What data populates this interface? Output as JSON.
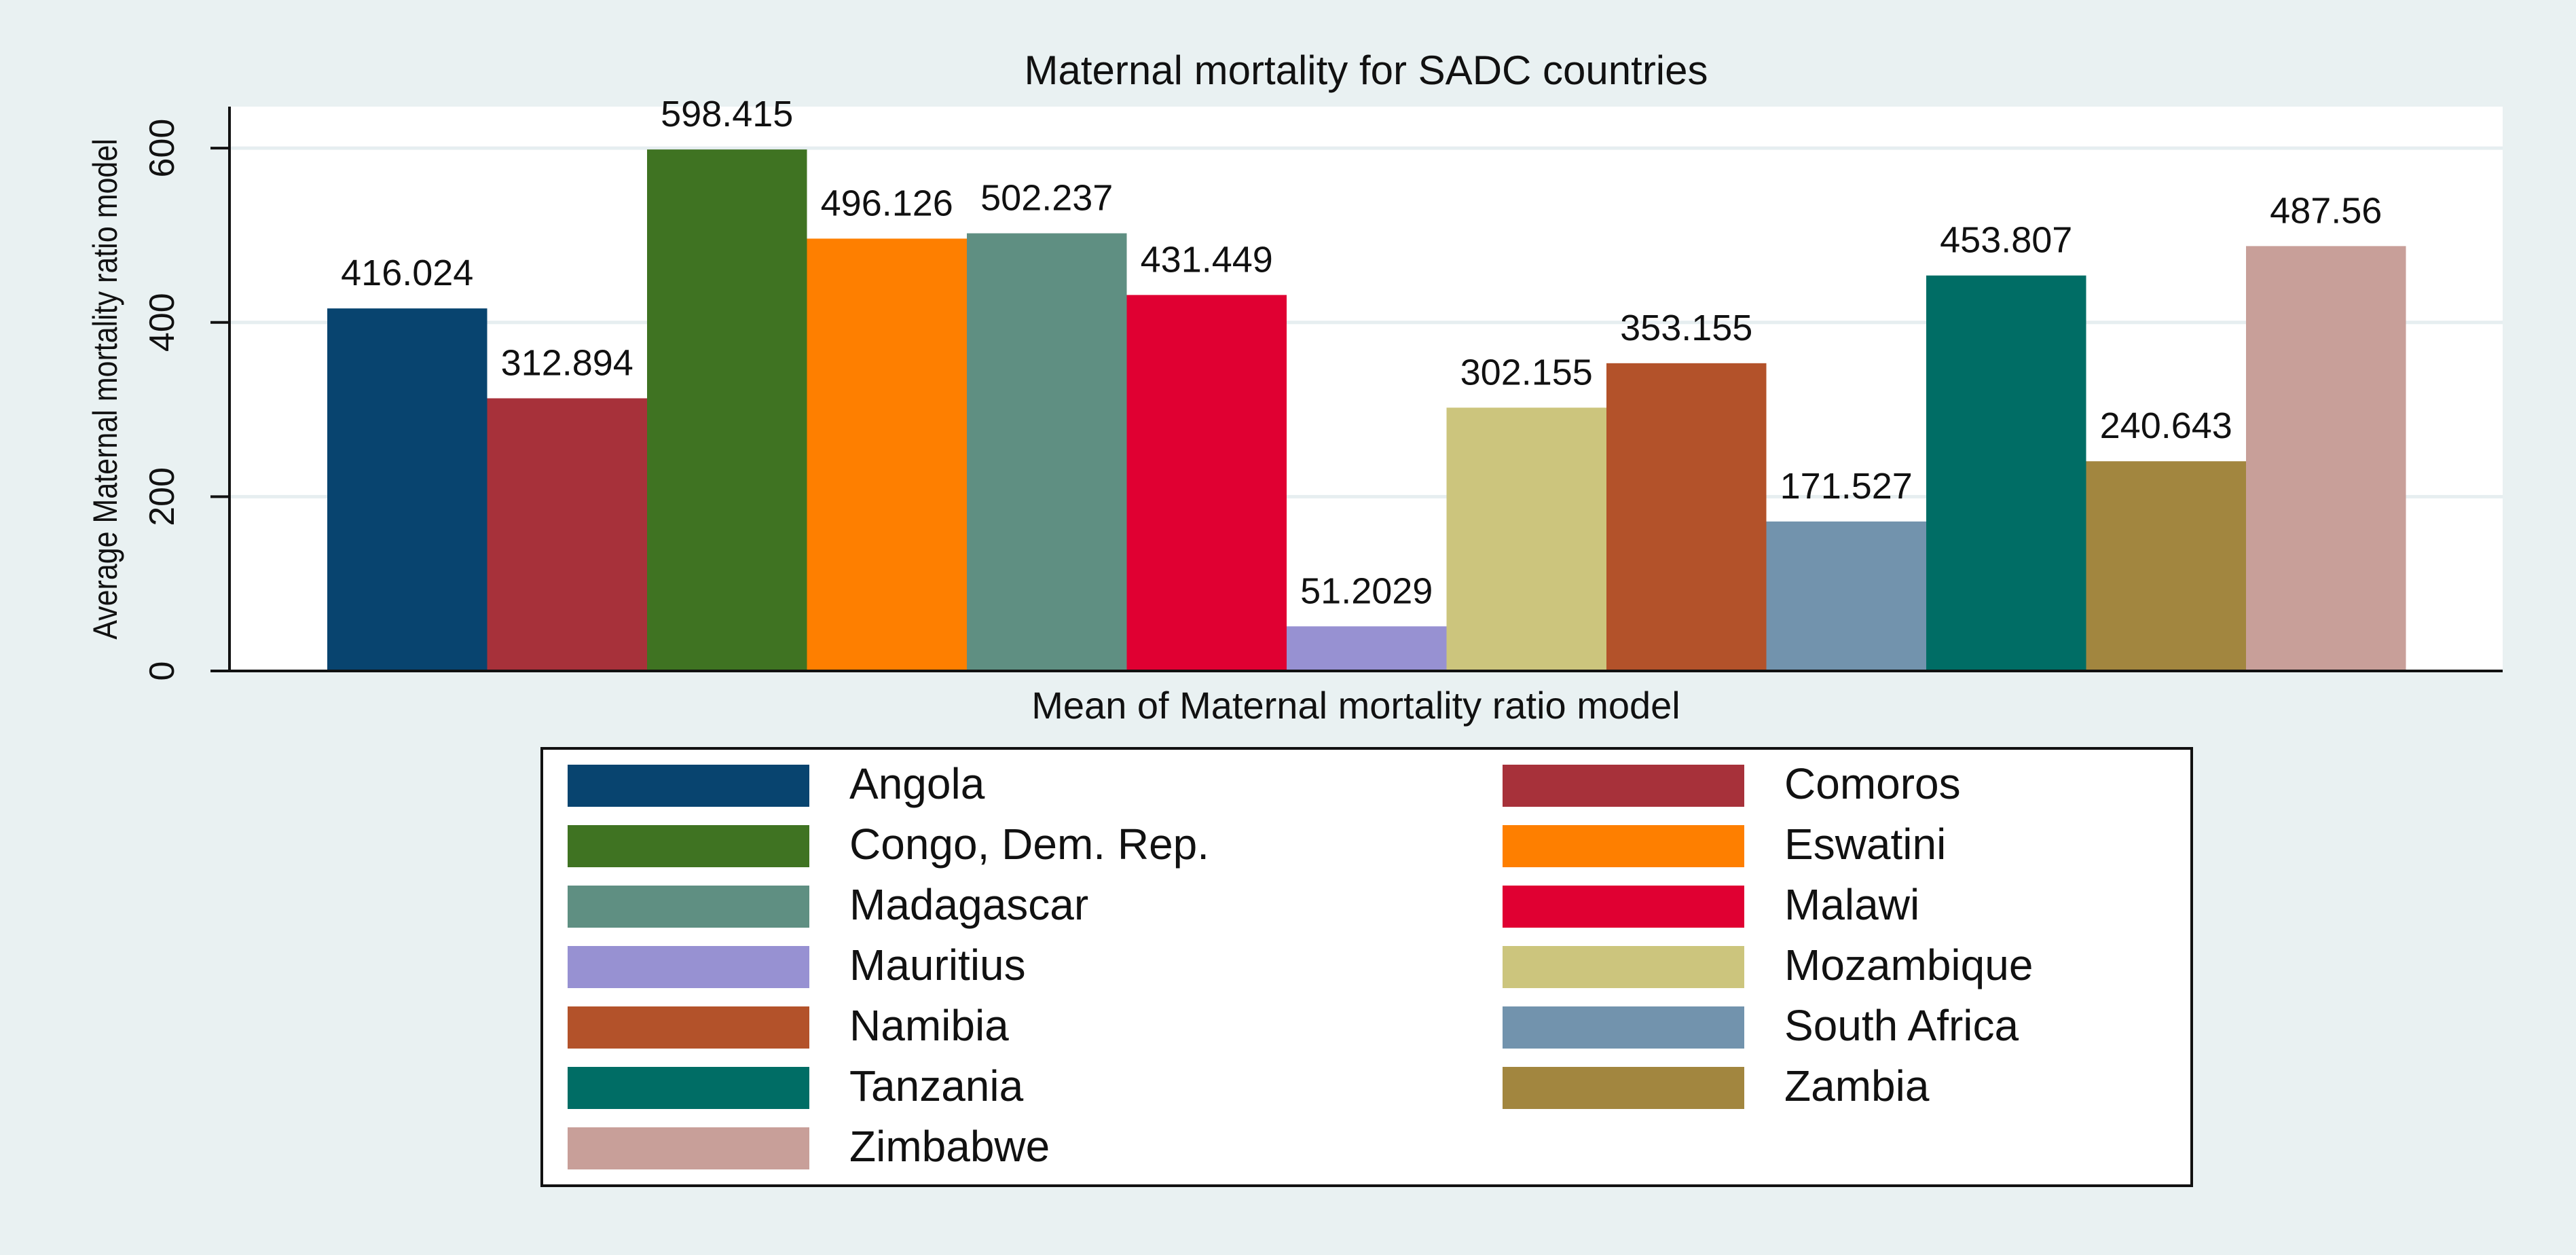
{
  "chart_data": {
    "type": "bar",
    "title": "Maternal mortality for SADC countries",
    "ylabel": "Average Maternal mortality ratio model",
    "xlabel": "Mean of Maternal mortality ratio model",
    "ylim": [
      0,
      650
    ],
    "yticks": [
      0,
      200,
      400,
      600
    ],
    "grid": true,
    "legend_position": "bottom",
    "series": [
      {
        "name": "Angola",
        "value": 416.024,
        "label": "416.024",
        "color": "#08446f"
      },
      {
        "name": "Comoros",
        "value": 312.894,
        "label": "312.894",
        "color": "#a7313a"
      },
      {
        "name": "Congo, Dem. Rep.",
        "value": 598.415,
        "label": "598.415",
        "color": "#3f7322"
      },
      {
        "name": "Eswatini",
        "value": 496.126,
        "label": "496.126",
        "color": "#fe7f00"
      },
      {
        "name": "Madagascar",
        "value": 502.237,
        "label": "502.237",
        "color": "#5f8f82"
      },
      {
        "name": "Malawi",
        "value": 431.449,
        "label": "431.449",
        "color": "#e00032"
      },
      {
        "name": "Mauritius",
        "value": 51.2029,
        "label": "51.2029",
        "color": "#9791d2"
      },
      {
        "name": "Mozambique",
        "value": 302.155,
        "label": "302.155",
        "color": "#ccc57d"
      },
      {
        "name": "Namibia",
        "value": 353.155,
        "label": "353.155",
        "color": "#b3522a"
      },
      {
        "name": "South Africa",
        "value": 171.527,
        "label": "171.527",
        "color": "#7293ad"
      },
      {
        "name": "Tanzania",
        "value": 453.807,
        "label": "453.807",
        "color": "#006d65"
      },
      {
        "name": "Zambia",
        "value": 240.643,
        "label": "240.643",
        "color": "#a2863f"
      },
      {
        "name": "Zimbabwe",
        "value": 487.56,
        "label": "487.56",
        "color": "#c89f99"
      }
    ]
  }
}
